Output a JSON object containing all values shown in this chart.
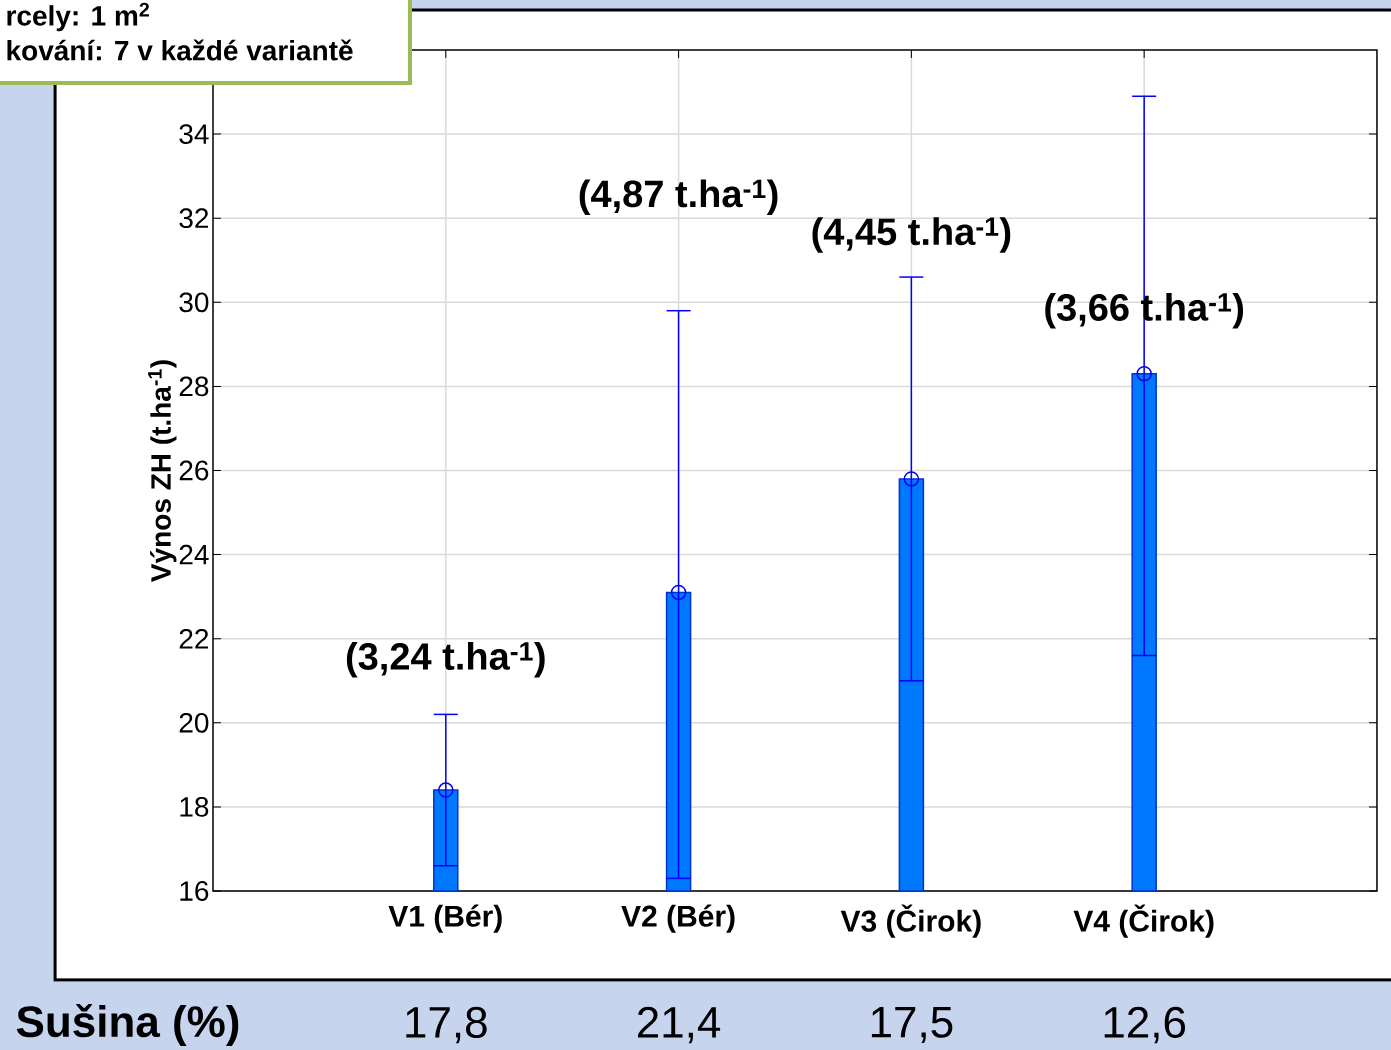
{
  "chart_data": {
    "type": "bar",
    "ylabel": "Výnos ZH (t.ha$^{-1}$)",
    "categories": [
      "V1 (Bér)",
      "V2 (Bér)",
      "V3 (Čirok)",
      "V4 (Čirok)"
    ],
    "series": [
      {
        "color": "#0078ff",
        "values": [
          18.4,
          23.1,
          25.8,
          28.3
        ],
        "errors": [
          [
            16.6,
            20.2
          ],
          [
            16.3,
            29.8
          ],
          [
            21.0,
            30.6
          ],
          [
            21.6,
            34.9
          ]
        ]
      },
      {
        "type": "scatter",
        "color": "#0000ff",
        "values": [
          18.4,
          23.1,
          25.8,
          28.3
        ]
      }
    ],
    "marker": "circle",
    "grid": true,
    "ylim": [
      16,
      36
    ],
    "yticks": [
      16,
      18,
      20,
      22,
      24,
      26,
      28,
      30,
      32,
      34
    ],
    "annotations": [
      "rcely: 1 m$^{2}$",
      "kování: 7 v každé variantě",
      "Sušina (%)",
      "(3,24 t.ha$^{-1}$)",
      "(4,87 t.ha$^{-1}$)",
      "(4,45 t.ha$^{-1}$)",
      "(3,66 t.ha$^{-1}$)",
      "17,8",
      "21,4",
      "17,5",
      "12,6"
    ]
  }
}
